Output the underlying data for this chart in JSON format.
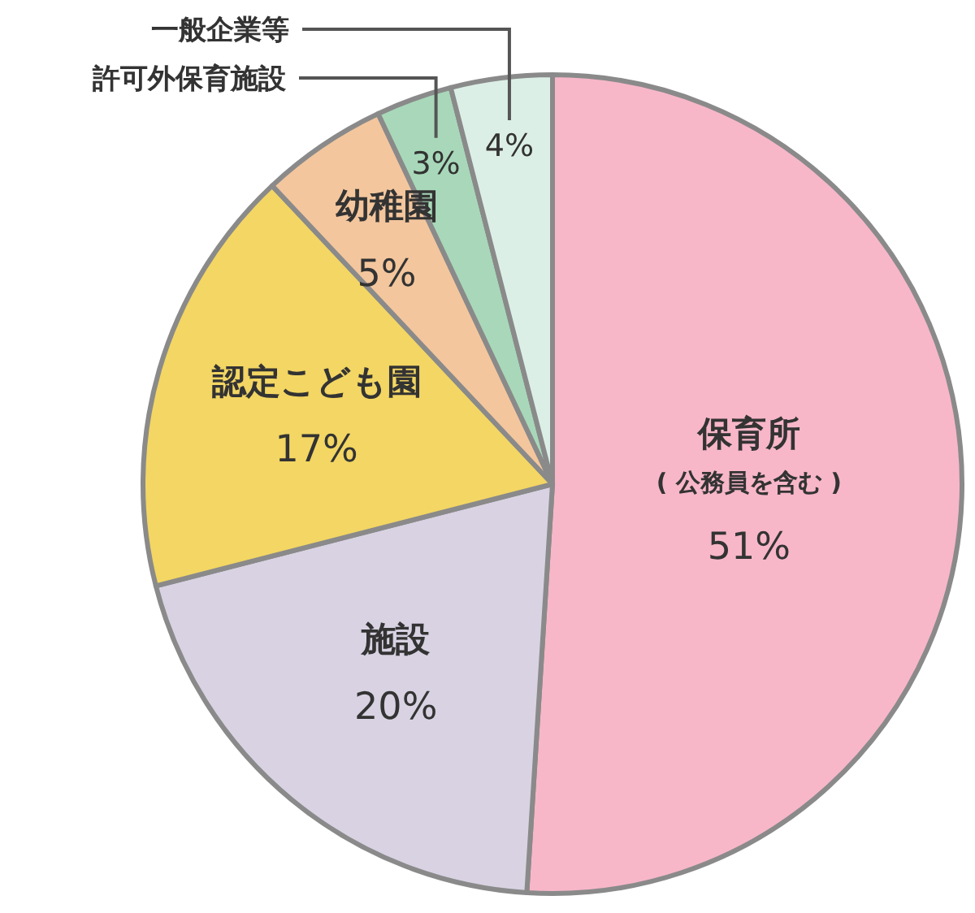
{
  "chart_data": {
    "type": "pie",
    "categories": [
      "保育所\n( 公務員を含む )",
      "施設",
      "認定こども園",
      "幼稚園",
      "許可外保育施設",
      "一般企業等"
    ],
    "values": [
      51,
      20,
      17,
      5,
      3,
      4
    ],
    "value_labels": [
      "51%",
      "20%",
      "17%",
      "5%",
      "3%",
      "4%"
    ],
    "colors": [
      "#f7b7c9",
      "#d8d2e2",
      "#f3d663",
      "#f3c69d",
      "#a8d8b9",
      "#dcefe6"
    ]
  }
}
